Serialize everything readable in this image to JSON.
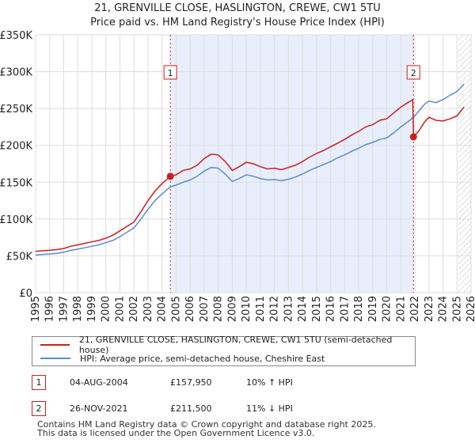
{
  "title_line1": "21, GRENVILLE CLOSE, HASLINGTON, CREWE, CW1 5TU",
  "title_line2": "Price paid vs. HM Land Registry's House Price Index (HPI)",
  "colors": {
    "property": "#cc1e1e",
    "hpi": "#5b8bd0",
    "highlight": "#e8eefb",
    "grid": "#dddddd"
  },
  "legend": {
    "property_label": "21, GRENVILLE CLOSE, HASLINGTON, CREWE, CW1 5TU (semi-detached house)",
    "hpi_label": "HPI: Average price, semi-detached house, Cheshire East"
  },
  "sales": [
    {
      "marker": "1",
      "date": "04-AUG-2004",
      "price": "£157,950",
      "hpi_change": "10% ↑ HPI"
    },
    {
      "marker": "2",
      "date": "26-NOV-2021",
      "price": "£211,500",
      "hpi_change": "11% ↓ HPI"
    }
  ],
  "footer_line1": "Contains HM Land Registry data © Crown copyright and database right 2025.",
  "footer_line2": "This data is licensed under the Open Government Licence v3.0.",
  "chart_data": {
    "type": "line",
    "xlim": [
      1995,
      2026
    ],
    "ylim": [
      0,
      350000
    ],
    "x_ticks": [
      "1995",
      "1996",
      "1997",
      "1998",
      "1999",
      "2000",
      "2001",
      "2002",
      "2003",
      "2004",
      "2005",
      "2006",
      "2007",
      "2008",
      "2009",
      "2010",
      "2011",
      "2012",
      "2013",
      "2014",
      "2015",
      "2016",
      "2017",
      "2018",
      "2019",
      "2020",
      "2021",
      "2022",
      "2023",
      "2024",
      "2025",
      "2026"
    ],
    "y_ticks": [
      {
        "value": 0,
        "label": "£0"
      },
      {
        "value": 50000,
        "label": "£50K"
      },
      {
        "value": 100000,
        "label": "£100K"
      },
      {
        "value": 150000,
        "label": "£150K"
      },
      {
        "value": 200000,
        "label": "£200K"
      },
      {
        "value": 250000,
        "label": "£250K"
      },
      {
        "value": 300000,
        "label": "£300K"
      },
      {
        "value": 350000,
        "label": "£350K"
      }
    ],
    "grid": true,
    "shaded_between": [
      2004.59,
      2021.9
    ],
    "hatched_from": 2025.1,
    "annotations": [
      {
        "label": "1",
        "x": 2004.59,
        "y": 157950
      },
      {
        "label": "2",
        "x": 2021.9,
        "y": 211500
      }
    ],
    "series": [
      {
        "name": "21, GRENVILLE CLOSE, HASLINGTON, CREWE, CW1 5TU (semi-detached house)",
        "color": "#cc1e1e",
        "points": [
          [
            1995.0,
            56000
          ],
          [
            1995.5,
            57000
          ],
          [
            1996.0,
            57500
          ],
          [
            1996.5,
            58500
          ],
          [
            1997.0,
            60000
          ],
          [
            1997.5,
            63000
          ],
          [
            1998.0,
            65000
          ],
          [
            1998.5,
            67000
          ],
          [
            1999.0,
            69000
          ],
          [
            1999.5,
            71000
          ],
          [
            2000.0,
            74000
          ],
          [
            2000.5,
            78000
          ],
          [
            2001.0,
            84000
          ],
          [
            2001.5,
            90000
          ],
          [
            2002.0,
            96000
          ],
          [
            2002.5,
            110000
          ],
          [
            2003.0,
            125000
          ],
          [
            2003.5,
            138000
          ],
          [
            2004.0,
            148000
          ],
          [
            2004.59,
            157950
          ],
          [
            2005.0,
            160000
          ],
          [
            2005.5,
            166000
          ],
          [
            2006.0,
            168000
          ],
          [
            2006.5,
            173000
          ],
          [
            2007.0,
            182000
          ],
          [
            2007.5,
            188000
          ],
          [
            2008.0,
            187000
          ],
          [
            2008.5,
            178000
          ],
          [
            2009.0,
            166000
          ],
          [
            2009.5,
            171000
          ],
          [
            2010.0,
            177000
          ],
          [
            2010.5,
            175000
          ],
          [
            2011.0,
            171000
          ],
          [
            2011.5,
            168000
          ],
          [
            2012.0,
            169000
          ],
          [
            2012.5,
            167000
          ],
          [
            2013.0,
            170000
          ],
          [
            2013.5,
            173000
          ],
          [
            2014.0,
            178000
          ],
          [
            2014.5,
            184000
          ],
          [
            2015.0,
            189000
          ],
          [
            2015.5,
            193000
          ],
          [
            2016.0,
            198000
          ],
          [
            2016.5,
            203000
          ],
          [
            2017.0,
            208000
          ],
          [
            2017.5,
            214000
          ],
          [
            2018.0,
            219000
          ],
          [
            2018.5,
            225000
          ],
          [
            2019.0,
            228000
          ],
          [
            2019.5,
            234000
          ],
          [
            2020.0,
            236000
          ],
          [
            2020.5,
            244000
          ],
          [
            2021.0,
            252000
          ],
          [
            2021.5,
            258000
          ],
          [
            2021.85,
            262000
          ],
          [
            2021.9,
            211500
          ],
          [
            2022.3,
            220000
          ],
          [
            2022.7,
            232000
          ],
          [
            2023.0,
            238000
          ],
          [
            2023.5,
            234000
          ],
          [
            2024.0,
            233000
          ],
          [
            2024.5,
            236000
          ],
          [
            2025.0,
            240000
          ],
          [
            2025.5,
            252000
          ]
        ]
      },
      {
        "name": "HPI: Average price, semi-detached house, Cheshire East",
        "color": "#5b8bd0",
        "points": [
          [
            1995.0,
            51000
          ],
          [
            1995.5,
            52000
          ],
          [
            1996.0,
            52500
          ],
          [
            1996.5,
            53500
          ],
          [
            1997.0,
            55000
          ],
          [
            1997.5,
            57500
          ],
          [
            1998.0,
            59000
          ],
          [
            1998.5,
            61000
          ],
          [
            1999.0,
            63000
          ],
          [
            1999.5,
            65000
          ],
          [
            2000.0,
            68000
          ],
          [
            2000.5,
            71000
          ],
          [
            2001.0,
            76000
          ],
          [
            2001.5,
            82000
          ],
          [
            2002.0,
            88000
          ],
          [
            2002.5,
            100000
          ],
          [
            2003.0,
            113000
          ],
          [
            2003.5,
            125000
          ],
          [
            2004.0,
            134000
          ],
          [
            2004.59,
            143600
          ],
          [
            2005.0,
            146000
          ],
          [
            2005.5,
            150000
          ],
          [
            2006.0,
            153000
          ],
          [
            2006.5,
            158000
          ],
          [
            2007.0,
            165000
          ],
          [
            2007.5,
            170000
          ],
          [
            2008.0,
            169000
          ],
          [
            2008.5,
            161000
          ],
          [
            2009.0,
            151000
          ],
          [
            2009.5,
            155000
          ],
          [
            2010.0,
            160000
          ],
          [
            2010.5,
            158000
          ],
          [
            2011.0,
            155000
          ],
          [
            2011.5,
            153000
          ],
          [
            2012.0,
            153500
          ],
          [
            2012.5,
            152000
          ],
          [
            2013.0,
            154000
          ],
          [
            2013.5,
            157000
          ],
          [
            2014.0,
            161000
          ],
          [
            2014.5,
            166000
          ],
          [
            2015.0,
            170000
          ],
          [
            2015.5,
            174000
          ],
          [
            2016.0,
            178000
          ],
          [
            2016.5,
            183000
          ],
          [
            2017.0,
            187000
          ],
          [
            2017.5,
            192000
          ],
          [
            2018.0,
            196000
          ],
          [
            2018.5,
            201000
          ],
          [
            2019.0,
            204000
          ],
          [
            2019.5,
            208000
          ],
          [
            2020.0,
            210000
          ],
          [
            2020.5,
            217000
          ],
          [
            2021.0,
            225000
          ],
          [
            2021.5,
            232000
          ],
          [
            2021.9,
            238000
          ],
          [
            2022.3,
            247000
          ],
          [
            2022.7,
            256000
          ],
          [
            2023.0,
            260000
          ],
          [
            2023.5,
            258000
          ],
          [
            2024.0,
            262000
          ],
          [
            2024.5,
            268000
          ],
          [
            2025.0,
            273000
          ],
          [
            2025.5,
            283000
          ]
        ]
      }
    ]
  }
}
